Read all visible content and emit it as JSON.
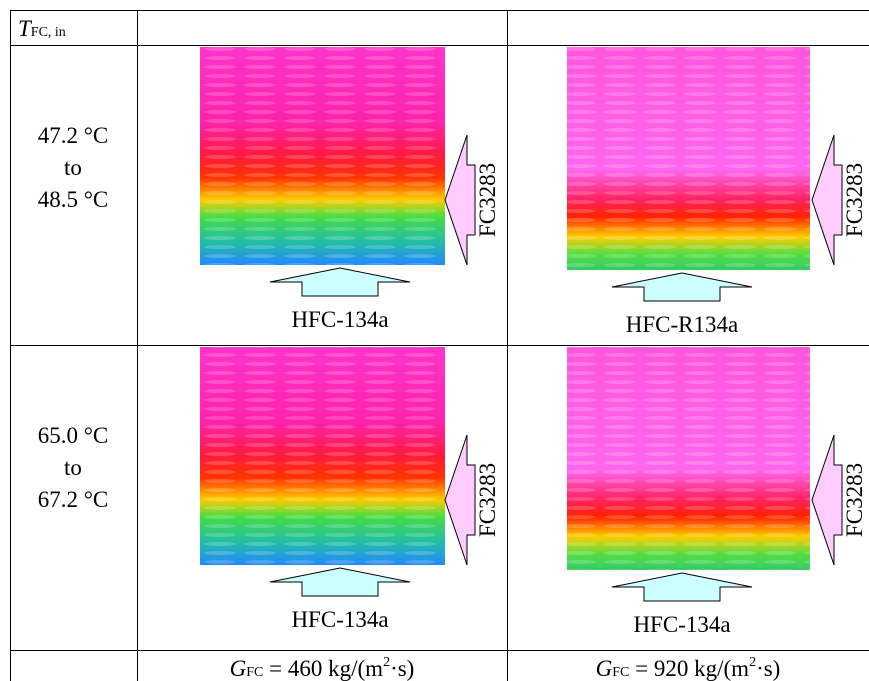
{
  "header": {
    "symbol": "T",
    "subscript": "FC, in"
  },
  "rows": [
    {
      "range": [
        "47.2 °C",
        "to",
        "48.5 °C"
      ],
      "cells": [
        {
          "side_label": "FC3283",
          "bottom_label": "HFC-134a"
        },
        {
          "side_label": "FC3283",
          "bottom_label": "HFC-R134a"
        }
      ]
    },
    {
      "range": [
        "65.0 °C",
        "to",
        "67.2 °C"
      ],
      "cells": [
        {
          "side_label": "FC3283",
          "bottom_label": "HFC-134a"
        },
        {
          "side_label": "FC3283",
          "bottom_label": "HFC-134a"
        }
      ]
    }
  ],
  "footer": [
    {
      "symbol": "G",
      "subscript": "FC",
      "text": " = 460 kg/(m",
      "superscript": "2",
      "tail": "·s)"
    },
    {
      "symbol": "G",
      "subscript": "FC",
      "text": " = 920 kg/(m",
      "superscript": "2",
      "tail": "·s)"
    }
  ]
}
